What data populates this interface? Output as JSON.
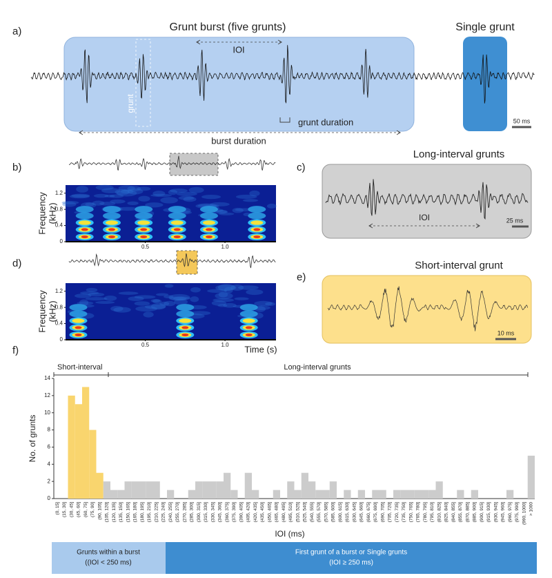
{
  "panel_a": {
    "label": "a)",
    "title": "Grunt burst (five grunts)",
    "single": "Single grunt",
    "ioi": "IOI",
    "grunt": "grunt",
    "grunt_duration": "grunt duration",
    "burst_duration": "burst duration",
    "scale": "50 ms"
  },
  "panel_b": {
    "label": "b)",
    "ylabel": [
      "Frequency",
      "(kHz)"
    ],
    "ylim": [
      0,
      1.4
    ],
    "yticks": [
      0,
      0.4,
      0.8,
      1.2
    ],
    "xlim": [
      0,
      1.32
    ],
    "xticks": [
      0.5,
      {
        "value": 1,
        "label": "1.0"
      }
    ]
  },
  "panel_c": {
    "label": "c)",
    "title": "Long-interval grunts",
    "ioi": "IOI",
    "scale": "25 ms"
  },
  "panel_d": {
    "label": "d)",
    "ylabel": [
      "Frequency",
      "(kHz)"
    ],
    "xlabel": "Time (s)",
    "ylim": [
      0,
      1.4
    ],
    "yticks": [
      0,
      0.4,
      0.8,
      1.2
    ],
    "xlim": [
      0,
      1.32
    ],
    "xticks": [
      0.5,
      {
        "value": 1,
        "label": "1.0"
      }
    ]
  },
  "panel_e": {
    "label": "e)",
    "title": "Short-interval grunt",
    "scale": "10 ms"
  },
  "panel_f": {
    "label": "f)",
    "short_label": "Short-interval",
    "long_label": "Long-interval grunts"
  },
  "chart_data": {
    "type": "bar",
    "ylabel": "No. of grunts",
    "xlabel": "IOI (ms)",
    "ylim": [
      0,
      14
    ],
    "yticks": [
      0,
      2,
      4,
      6,
      8,
      10,
      12,
      14
    ],
    "categories": [
      "(0, 15]",
      "(15, 30]",
      "(30, 45]",
      "(45, 60]",
      "(60, 75]",
      "(75, 90]",
      "(90, 105]",
      "(105, 120]",
      "(120, 135]",
      "(135, 150]",
      "(150, 165]",
      "(165, 180]",
      "(180, 195]",
      "(195, 210]",
      "(210, 225]",
      "(225, 240]",
      "(240, 255]",
      "(255, 270]",
      "(270, 285]",
      "(285, 300]",
      "(300, 315]",
      "(315, 330]",
      "(330, 345]",
      "(345, 360]",
      "(360, 375]",
      "(375, 390]",
      "(390, 405]",
      "(405, 420]",
      "(420, 435]",
      "(435, 450]",
      "(450, 465]",
      "(465, 480]",
      "(480, 495]",
      "(495, 510]",
      "(510, 525]",
      "(525, 540]",
      "(540, 555]",
      "(555, 570]",
      "(570, 585]",
      "(585, 600]",
      "(600, 615]",
      "(615, 630]",
      "(630, 645]",
      "(645, 660]",
      "(660, 675]",
      "(675, 690]",
      "(690, 705]",
      "(705, 720]",
      "(720, 735]",
      "(735, 750]",
      "(750, 765]",
      "(765, 780]",
      "(780, 795]",
      "(795, 810]",
      "(810, 825]",
      "(825, 840]",
      "(840, 855]",
      "(855, 870]",
      "(870, 885]",
      "(885, 900]",
      "(900, 915]",
      "(915, 930]",
      "(930, 945]",
      "(945, 960]",
      "(960, 975]",
      "(975, 990]",
      "(990, 1000]",
      "> 1000"
    ],
    "values": [
      0,
      0,
      12,
      11,
      13,
      8,
      3,
      2,
      1,
      1,
      2,
      2,
      2,
      2,
      2,
      0,
      1,
      0,
      0,
      1,
      2,
      2,
      2,
      2,
      3,
      1,
      0,
      3,
      1,
      0,
      0,
      1,
      0,
      2,
      1,
      3,
      2,
      1,
      1,
      2,
      0,
      1,
      0,
      1,
      0,
      1,
      1,
      0,
      1,
      1,
      1,
      1,
      1,
      1,
      2,
      0,
      0,
      1,
      0,
      1,
      0,
      0,
      0,
      0,
      1,
      0,
      0,
      5
    ],
    "colors": [
      "#f9d56e",
      "#f9d56e",
      "#f9d56e",
      "#f9d56e",
      "#f9d56e",
      "#f9d56e",
      "#f9d56e",
      "#cccccc",
      "#cccccc",
      "#cccccc",
      "#cccccc",
      "#cccccc",
      "#cccccc",
      "#cccccc",
      "#cccccc",
      "#cccccc",
      "#cccccc",
      "#cccccc",
      "#cccccc",
      "#cccccc",
      "#cccccc",
      "#cccccc",
      "#cccccc",
      "#cccccc",
      "#cccccc",
      "#cccccc",
      "#cccccc",
      "#cccccc",
      "#cccccc",
      "#cccccc",
      "#cccccc",
      "#cccccc",
      "#cccccc",
      "#cccccc",
      "#cccccc",
      "#cccccc",
      "#cccccc",
      "#cccccc",
      "#cccccc",
      "#cccccc",
      "#cccccc",
      "#cccccc",
      "#cccccc",
      "#cccccc",
      "#cccccc",
      "#cccccc",
      "#cccccc",
      "#cccccc",
      "#cccccc",
      "#cccccc",
      "#cccccc",
      "#cccccc",
      "#cccccc",
      "#cccccc",
      "#cccccc",
      "#cccccc",
      "#cccccc",
      "#cccccc",
      "#cccccc",
      "#cccccc",
      "#cccccc",
      "#cccccc",
      "#cccccc",
      "#cccccc",
      "#cccccc",
      "#cccccc",
      "#cccccc",
      "#cccccc"
    ]
  },
  "footer": {
    "within": [
      "Grunts within a burst",
      "((IOI < 250 ms)"
    ],
    "first": [
      "First grunt of a burst or Single grunts",
      "(IOI ≥ 250 ms)"
    ]
  }
}
